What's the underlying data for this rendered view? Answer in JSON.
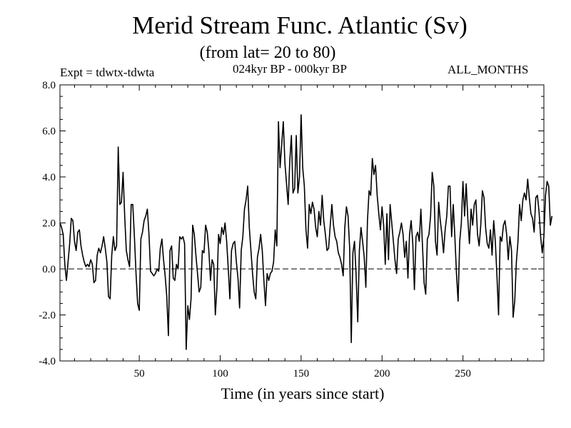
{
  "header": {
    "title": "Merid Stream Func. Atlantic (Sv)",
    "subtitle": "(from lat= 20 to 80)",
    "expt": "Expt = tdwtx-tdwta",
    "period": "024kyr BP - 000kyr BP",
    "months": "ALL_MONTHS"
  },
  "chart_data": {
    "type": "line",
    "title": "Merid Stream Func. Atlantic (Sv)",
    "subtitle": "(from lat= 20 to 80)",
    "xlabel": "Time (in years since start)",
    "ylabel": "",
    "xlim": [
      1,
      300
    ],
    "ylim": [
      -4.0,
      8.0
    ],
    "x_ticks": [
      50,
      100,
      150,
      200,
      250
    ],
    "x_tick_labels": [
      "50",
      "100",
      "150",
      "200",
      "250"
    ],
    "y_ticks": [
      -4.0,
      -2.0,
      0.0,
      2.0,
      4.0,
      6.0,
      8.0
    ],
    "y_tick_labels": [
      "-4.0",
      "-2.0",
      "0.0",
      "2.0",
      "4.0",
      "6.0",
      "8.0"
    ],
    "reference_line": 0.0,
    "series": [
      {
        "name": "Merid Stream Func. Atlantic",
        "x_start": 1,
        "x_step": 1,
        "values": [
          2.0,
          1.8,
          1.5,
          0.2,
          -0.5,
          0.3,
          1.1,
          2.2,
          2.1,
          1.2,
          0.8,
          1.6,
          1.7,
          1.0,
          0.6,
          0.3,
          0.1,
          0.2,
          0.1,
          0.4,
          0.2,
          -0.6,
          -0.5,
          0.6,
          0.9,
          0.7,
          1.0,
          1.4,
          0.9,
          0.3,
          -1.2,
          -1.3,
          0.6,
          1.4,
          0.8,
          1.0,
          5.3,
          2.8,
          2.9,
          4.2,
          2.3,
          0.8,
          0.4,
          0.1,
          2.8,
          2.8,
          1.4,
          -0.2,
          -1.5,
          -1.8,
          1.3,
          1.6,
          2.1,
          2.3,
          2.6,
          1.5,
          -0.1,
          -0.2,
          -0.3,
          -0.2,
          0.0,
          -0.1,
          0.9,
          1.3,
          0.4,
          -0.3,
          -1.2,
          -2.9,
          0.8,
          1.0,
          -0.4,
          -0.5,
          0.2,
          0.0,
          1.4,
          1.3,
          1.4,
          1.1,
          -3.5,
          -1.6,
          -2.2,
          -1.3,
          1.9,
          1.5,
          0.6,
          -0.2,
          -1.0,
          -0.8,
          0.8,
          0.7,
          1.9,
          1.6,
          0.8,
          -0.5,
          0.4,
          0.2,
          -2.0,
          -0.8,
          1.5,
          1.1,
          1.8,
          1.5,
          2.0,
          1.2,
          0.0,
          -1.3,
          0.8,
          1.1,
          1.2,
          0.3,
          -0.4,
          -1.7,
          0.8,
          1.4,
          2.6,
          3.0,
          3.6,
          1.8,
          0.8,
          -0.2,
          -1.0,
          -1.3,
          0.5,
          0.9,
          1.5,
          0.8,
          -0.5,
          -1.6,
          -0.2,
          -0.5,
          -0.2,
          -0.1,
          0.3,
          1.7,
          1.0,
          6.4,
          4.4,
          5.4,
          6.4,
          4.6,
          3.7,
          2.8,
          4.7,
          5.8,
          3.3,
          3.5,
          5.8,
          3.3,
          4.0,
          6.7,
          4.4,
          3.6,
          1.7,
          0.9,
          2.8,
          2.4,
          2.9,
          2.6,
          1.8,
          1.4,
          2.5,
          1.9,
          3.2,
          2.1,
          1.5,
          0.8,
          0.9,
          1.9,
          2.8,
          1.9,
          1.4,
          1.2,
          0.7,
          0.5,
          0.2,
          -0.3,
          1.8,
          2.7,
          2.3,
          0.9,
          -3.2,
          0.7,
          1.2,
          -0.3,
          -2.3,
          0.8,
          1.8,
          1.2,
          0.5,
          -0.8,
          2.1,
          3.4,
          3.2,
          4.8,
          4.1,
          4.5,
          3.2,
          2.4,
          1.7,
          2.7,
          1.9,
          0.2,
          2.4,
          0.4,
          2.8,
          2.0,
          1.2,
          0.4,
          -0.2,
          1.3,
          1.6,
          2.0,
          1.5,
          0.5,
          1.2,
          -0.4,
          1.5,
          2.1,
          1.1,
          -0.9,
          1.4,
          1.6,
          1.2,
          2.6,
          1.0,
          -0.6,
          -1.1,
          1.3,
          1.5,
          2.3,
          4.2,
          3.6,
          1.2,
          0.6,
          2.9,
          2.1,
          1.5,
          0.7,
          1.7,
          2.3,
          3.6,
          3.6,
          1.4,
          2.8,
          1.4,
          -0.2,
          -1.4,
          1.2,
          2.0,
          3.8,
          2.3,
          3.7,
          2.2,
          1.1,
          2.6,
          1.9,
          2.8,
          3.0,
          1.5,
          1.0,
          1.9,
          3.4,
          3.1,
          1.8,
          1.1,
          0.9,
          1.7,
          0.6,
          2.1,
          1.2,
          -0.3,
          -2.0,
          1.4,
          1.2,
          1.9,
          2.1,
          1.5,
          0.4,
          1.4,
          0.8,
          -2.1,
          -1.4,
          0.3,
          1.2,
          2.8,
          2.1,
          3.0,
          3.3,
          3.0,
          3.9,
          3.1,
          2.4,
          2.2,
          1.6,
          3.1,
          3.2,
          2.5,
          1.4,
          0.7,
          1.4,
          3.2,
          3.8,
          3.6,
          1.9,
          2.3
        ]
      }
    ]
  }
}
